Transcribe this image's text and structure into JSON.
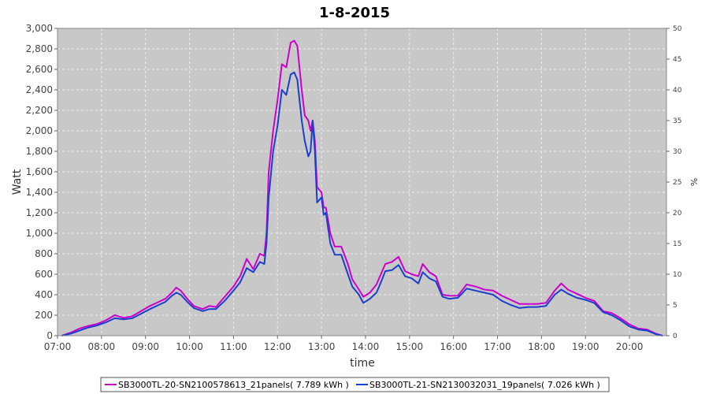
{
  "chart_data": {
    "type": "line",
    "title": "1-8-2015",
    "xlabel": "time",
    "ylabel": "Watt",
    "y2label": "%",
    "xlim": [
      7.0,
      20.84
    ],
    "ylim": [
      0,
      3000
    ],
    "y2lim": [
      0,
      50
    ],
    "x_ticks": [
      "07:00",
      "08:00",
      "09:00",
      "10:00",
      "11:00",
      "12:00",
      "13:00",
      "14:00",
      "15:00",
      "16:00",
      "17:00",
      "18:00",
      "19:00",
      "20:00"
    ],
    "y_ticks": [
      "0",
      "200",
      "400",
      "600",
      "800",
      "1,000",
      "1,200",
      "1,400",
      "1,600",
      "1,800",
      "2,000",
      "2,200",
      "2,400",
      "2,600",
      "2,800",
      "3,000"
    ],
    "y2_ticks": [
      "0",
      "5",
      "10",
      "15",
      "20",
      "25",
      "30",
      "35",
      "40",
      "45",
      "50"
    ],
    "grid": true,
    "legend_position": "bottom",
    "colors": {
      "plot_bg": "#c8c8c8",
      "grid": "#eeeeee"
    },
    "series": [
      {
        "name": "SB3000TL-20-SN2100578613_21panels( 7.789 kWh )",
        "color": "#cc00cc",
        "points": [
          [
            7.1,
            0
          ],
          [
            7.3,
            30
          ],
          [
            7.5,
            70
          ],
          [
            7.7,
            95
          ],
          [
            7.9,
            115
          ],
          [
            8.1,
            150
          ],
          [
            8.3,
            200
          ],
          [
            8.5,
            175
          ],
          [
            8.7,
            190
          ],
          [
            8.9,
            240
          ],
          [
            9.1,
            290
          ],
          [
            9.3,
            330
          ],
          [
            9.45,
            360
          ],
          [
            9.6,
            420
          ],
          [
            9.7,
            470
          ],
          [
            9.8,
            440
          ],
          [
            9.95,
            360
          ],
          [
            10.1,
            290
          ],
          [
            10.3,
            260
          ],
          [
            10.45,
            290
          ],
          [
            10.6,
            280
          ],
          [
            10.8,
            380
          ],
          [
            11.0,
            480
          ],
          [
            11.15,
            580
          ],
          [
            11.3,
            750
          ],
          [
            11.45,
            650
          ],
          [
            11.6,
            800
          ],
          [
            11.7,
            780
          ],
          [
            11.75,
            1000
          ],
          [
            11.8,
            1600
          ],
          [
            11.9,
            2000
          ],
          [
            12.0,
            2300
          ],
          [
            12.1,
            2650
          ],
          [
            12.2,
            2620
          ],
          [
            12.3,
            2860
          ],
          [
            12.38,
            2880
          ],
          [
            12.45,
            2830
          ],
          [
            12.55,
            2400
          ],
          [
            12.62,
            2150
          ],
          [
            12.7,
            2100
          ],
          [
            12.75,
            2000
          ],
          [
            12.8,
            2100
          ],
          [
            12.85,
            1900
          ],
          [
            12.9,
            1450
          ],
          [
            13.0,
            1400
          ],
          [
            13.05,
            1250
          ],
          [
            13.1,
            1250
          ],
          [
            13.2,
            1000
          ],
          [
            13.3,
            870
          ],
          [
            13.45,
            870
          ],
          [
            13.6,
            700
          ],
          [
            13.7,
            550
          ],
          [
            13.85,
            450
          ],
          [
            13.95,
            380
          ],
          [
            14.1,
            420
          ],
          [
            14.25,
            500
          ],
          [
            14.35,
            600
          ],
          [
            14.45,
            700
          ],
          [
            14.6,
            720
          ],
          [
            14.75,
            770
          ],
          [
            14.9,
            630
          ],
          [
            15.05,
            600
          ],
          [
            15.2,
            580
          ],
          [
            15.3,
            700
          ],
          [
            15.45,
            620
          ],
          [
            15.6,
            580
          ],
          [
            15.75,
            400
          ],
          [
            15.9,
            390
          ],
          [
            16.1,
            390
          ],
          [
            16.3,
            500
          ],
          [
            16.5,
            480
          ],
          [
            16.7,
            450
          ],
          [
            16.9,
            440
          ],
          [
            17.1,
            390
          ],
          [
            17.3,
            350
          ],
          [
            17.5,
            310
          ],
          [
            17.7,
            310
          ],
          [
            17.9,
            310
          ],
          [
            18.1,
            320
          ],
          [
            18.3,
            440
          ],
          [
            18.45,
            510
          ],
          [
            18.6,
            450
          ],
          [
            18.8,
            410
          ],
          [
            19.0,
            370
          ],
          [
            19.2,
            340
          ],
          [
            19.4,
            240
          ],
          [
            19.6,
            220
          ],
          [
            19.8,
            170
          ],
          [
            20.0,
            110
          ],
          [
            20.2,
            70
          ],
          [
            20.4,
            60
          ],
          [
            20.6,
            20
          ],
          [
            20.75,
            0
          ]
        ]
      },
      {
        "name": "SB3000TL-21-SN2130032031_19panels( 7.026 kWh )",
        "color": "#1a3fcc",
        "points": [
          [
            7.1,
            0
          ],
          [
            7.3,
            20
          ],
          [
            7.5,
            50
          ],
          [
            7.7,
            80
          ],
          [
            7.9,
            100
          ],
          [
            8.1,
            130
          ],
          [
            8.3,
            170
          ],
          [
            8.5,
            160
          ],
          [
            8.7,
            170
          ],
          [
            8.9,
            215
          ],
          [
            9.1,
            260
          ],
          [
            9.3,
            300
          ],
          [
            9.45,
            330
          ],
          [
            9.6,
            390
          ],
          [
            9.7,
            420
          ],
          [
            9.8,
            400
          ],
          [
            9.95,
            330
          ],
          [
            10.1,
            270
          ],
          [
            10.3,
            240
          ],
          [
            10.45,
            260
          ],
          [
            10.6,
            260
          ],
          [
            10.8,
            340
          ],
          [
            11.0,
            440
          ],
          [
            11.15,
            520
          ],
          [
            11.3,
            660
          ],
          [
            11.45,
            620
          ],
          [
            11.6,
            720
          ],
          [
            11.7,
            700
          ],
          [
            11.75,
            900
          ],
          [
            11.8,
            1350
          ],
          [
            11.9,
            1800
          ],
          [
            12.0,
            2050
          ],
          [
            12.1,
            2400
          ],
          [
            12.2,
            2350
          ],
          [
            12.3,
            2550
          ],
          [
            12.38,
            2570
          ],
          [
            12.45,
            2500
          ],
          [
            12.55,
            2100
          ],
          [
            12.62,
            1900
          ],
          [
            12.7,
            1750
          ],
          [
            12.75,
            1800
          ],
          [
            12.8,
            2100
          ],
          [
            12.85,
            1800
          ],
          [
            12.9,
            1300
          ],
          [
            13.0,
            1350
          ],
          [
            13.05,
            1180
          ],
          [
            13.1,
            1200
          ],
          [
            13.2,
            900
          ],
          [
            13.3,
            790
          ],
          [
            13.45,
            790
          ],
          [
            13.6,
            600
          ],
          [
            13.7,
            480
          ],
          [
            13.85,
            400
          ],
          [
            13.95,
            320
          ],
          [
            14.1,
            360
          ],
          [
            14.25,
            420
          ],
          [
            14.35,
            520
          ],
          [
            14.45,
            630
          ],
          [
            14.6,
            640
          ],
          [
            14.75,
            690
          ],
          [
            14.9,
            580
          ],
          [
            15.05,
            560
          ],
          [
            15.2,
            510
          ],
          [
            15.3,
            620
          ],
          [
            15.45,
            560
          ],
          [
            15.6,
            530
          ],
          [
            15.75,
            380
          ],
          [
            15.9,
            360
          ],
          [
            16.1,
            370
          ],
          [
            16.3,
            460
          ],
          [
            16.5,
            440
          ],
          [
            16.7,
            420
          ],
          [
            16.9,
            400
          ],
          [
            17.1,
            340
          ],
          [
            17.3,
            300
          ],
          [
            17.5,
            270
          ],
          [
            17.7,
            280
          ],
          [
            17.9,
            280
          ],
          [
            18.1,
            290
          ],
          [
            18.3,
            400
          ],
          [
            18.45,
            450
          ],
          [
            18.6,
            410
          ],
          [
            18.8,
            370
          ],
          [
            19.0,
            350
          ],
          [
            19.2,
            320
          ],
          [
            19.4,
            230
          ],
          [
            19.6,
            200
          ],
          [
            19.8,
            150
          ],
          [
            20.0,
            90
          ],
          [
            20.2,
            60
          ],
          [
            20.4,
            50
          ],
          [
            20.6,
            15
          ],
          [
            20.75,
            0
          ]
        ]
      }
    ]
  }
}
